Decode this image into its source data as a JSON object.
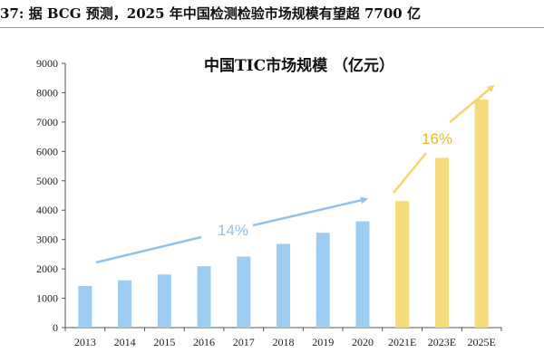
{
  "header": "37: 据 BCG 预测，2025 年中国检测检验市场规模有望超 7700 亿",
  "chart_data": {
    "type": "bar",
    "title": "中国TIC市场规模 （亿元）",
    "categories": [
      "2013",
      "2014",
      "2015",
      "2016",
      "2017",
      "2018",
      "2019",
      "2020",
      "2021E",
      "2023E",
      "2025E"
    ],
    "values": [
      1420,
      1610,
      1810,
      2090,
      2420,
      2850,
      3230,
      3620,
      4310,
      5780,
      7770
    ],
    "ylim": [
      0,
      9000
    ],
    "yticks": [
      0,
      1000,
      2000,
      3000,
      4000,
      5000,
      6000,
      7000,
      8000,
      9000
    ],
    "grid": false,
    "colors": {
      "actual": "#9DCDF3",
      "forecast": "#F5DB7C",
      "actual_arrow": "#8FC3EE",
      "forecast_arrow": "#F5D46E",
      "forecast_label": "#EBB72E"
    },
    "annotations": [
      {
        "text": "14%",
        "period": "2013-2020"
      },
      {
        "text": "16%",
        "period": "2021E-2025E"
      }
    ]
  }
}
